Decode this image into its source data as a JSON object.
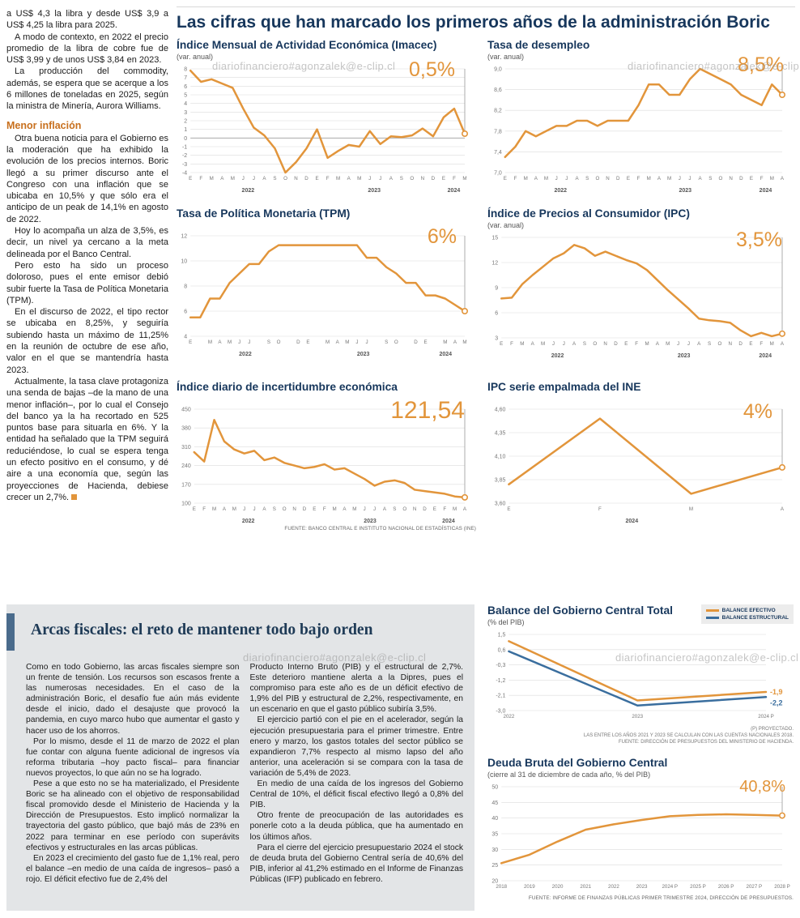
{
  "watermark": "diariofinanciero#agonzalek@e-clip.cl",
  "colors": {
    "accent_orange": "#E2953B",
    "accent_blue": "#3A6E9E",
    "navy": "#17375C",
    "panel_gray": "#E3E5E7",
    "accent_bar": "#4A6B8C",
    "subhead_orange": "#C8701E"
  },
  "headline": "Las cifras que han marcado los primeros años de la administración Boric",
  "left_article": {
    "paragraphs": [
      "a US$ 4,3 la libra y desde US$ 3,9 a US$ 4,25 la libra para 2025.",
      "A modo de contexto, en 2022 el precio promedio de la libra de cobre fue de US$ 3,99 y de unos US$ 3,84 en 2023.",
      "La producción del commodity, además, se espera que se acerque a los 6 millones de toneladas en 2025, según la ministra de Minería, Aurora Williams."
    ],
    "subhead": "Menor inflación",
    "paragraphs2": [
      "Otra buena noticia para el Gobierno es la moderación que ha exhibido la evolución de los precios internos. Boric llegó a su primer discurso ante el Congreso con una inflación que se ubicaba en 10,5% y que sólo era el anticipo de un peak de 14,1% en agosto de 2022.",
      "Hoy lo acompaña un alza de 3,5%, es decir, un nivel ya cercano a la meta delineada por el Banco Central.",
      "Pero esto ha sido un proceso doloroso, pues el ente emisor debió subir fuerte la Tasa de Política Monetaria (TPM).",
      "En el discurso de 2022, el tipo rector se ubicaba en 8,25%, y seguiría subiendo hasta un máximo de 11,25% en la reunión de octubre de ese año, valor en el que se mantendría hasta 2023.",
      "Actualmente, la tasa clave protagoniza una senda de bajas –de la mano de una menor inflación–, por lo cual el Consejo del banco ya la ha recortado en 525 puntos base para situarla en 6%. Y la entidad ha señalado que la TPM seguirá reduciéndose, lo cual se espera tenga un efecto positivo en el consumo, y dé aire a una economía que, según las proyecciones de Hacienda, debiese crecer un 2,7%."
    ]
  },
  "chart_data": [
    {
      "type": "line",
      "title": "Índice Mensual de Actividad Económica (Imacec)",
      "subtitle": "(var. anual)",
      "big_value": "0,5%",
      "ylim": [
        -4,
        8
      ],
      "yticks": [
        "8",
        "7",
        "6",
        "5",
        "4",
        "3",
        "2",
        "1",
        "0",
        "-1",
        "-2",
        "-3",
        "-4"
      ],
      "zeroline": true,
      "end_marker": true,
      "x": [
        "E",
        "F",
        "M",
        "A",
        "M",
        "J",
        "J",
        "A",
        "S",
        "O",
        "N",
        "D",
        "E",
        "F",
        "M",
        "A",
        "M",
        "J",
        "J",
        "A",
        "S",
        "O",
        "N",
        "D",
        "E",
        "F",
        "M"
      ],
      "years": [
        {
          "label": "2022",
          "pos": 0.21
        },
        {
          "label": "2023",
          "pos": 0.67
        },
        {
          "label": "2024",
          "pos": 0.96
        }
      ],
      "series": [
        {
          "name": "Imacec",
          "color": "#E2953B",
          "values": [
            7.8,
            6.5,
            6.8,
            6.3,
            5.8,
            3.4,
            1.2,
            0.3,
            -1.2,
            -4.0,
            -2.8,
            -1.2,
            1.0,
            -2.3,
            -1.5,
            -0.8,
            -1.0,
            0.8,
            -0.7,
            0.2,
            0.1,
            0.3,
            1.1,
            0.2,
            2.4,
            3.4,
            0.5
          ]
        }
      ]
    },
    {
      "type": "line",
      "title": "Tasa de desempleo",
      "subtitle": "(var. anual)",
      "big_value": "8,5%",
      "ylim": [
        7.0,
        9.0
      ],
      "yticks": [
        "9,0",
        "8,6",
        "8,2",
        "7,8",
        "7,4",
        "7,0"
      ],
      "end_marker": true,
      "x": [
        "E",
        "F",
        "M",
        "A",
        "M",
        "J",
        "J",
        "A",
        "S",
        "O",
        "N",
        "D",
        "E",
        "F",
        "M",
        "A",
        "M",
        "J",
        "J",
        "A",
        "S",
        "O",
        "N",
        "D",
        "E",
        "F",
        "M",
        "A"
      ],
      "years": [
        {
          "label": "2022",
          "pos": 0.2
        },
        {
          "label": "2023",
          "pos": 0.65
        },
        {
          "label": "2024",
          "pos": 0.94
        }
      ],
      "series": [
        {
          "name": "Tasa de desempleo",
          "color": "#E2953B",
          "values": [
            7.3,
            7.5,
            7.8,
            7.7,
            7.8,
            7.9,
            7.9,
            8.0,
            8.0,
            7.9,
            8.0,
            8.0,
            8.0,
            8.3,
            8.7,
            8.7,
            8.5,
            8.5,
            8.8,
            9.0,
            8.9,
            8.8,
            8.7,
            8.5,
            8.4,
            8.3,
            8.7,
            8.5
          ]
        }
      ]
    },
    {
      "type": "line",
      "title": "Tasa de Política Monetaria (TPM)",
      "big_value": "6%",
      "ylim": [
        4,
        12
      ],
      "yticks": [
        "12",
        "10",
        "8",
        "6",
        "4"
      ],
      "end_marker": true,
      "x": [
        "E",
        "",
        "M",
        "A",
        "M",
        "J",
        "J",
        "",
        "S",
        "O",
        "",
        "D",
        "E",
        "",
        "M",
        "A",
        "M",
        "J",
        "J",
        "",
        "S",
        "O",
        "",
        "D",
        "E",
        "",
        "M",
        "A",
        "M"
      ],
      "years": [
        {
          "label": "2022",
          "pos": 0.2
        },
        {
          "label": "2023",
          "pos": 0.63
        },
        {
          "label": "2024",
          "pos": 0.93
        }
      ],
      "series": [
        {
          "name": "TPM",
          "color": "#E2953B",
          "values": [
            5.5,
            5.5,
            7.0,
            7.0,
            8.25,
            9.0,
            9.75,
            9.75,
            10.75,
            11.25,
            11.25,
            11.25,
            11.25,
            11.25,
            11.25,
            11.25,
            11.25,
            11.25,
            10.25,
            10.25,
            9.5,
            9.0,
            8.25,
            8.25,
            7.25,
            7.25,
            7.0,
            6.5,
            6.0
          ]
        }
      ]
    },
    {
      "type": "line",
      "title": "Índice de Precios al Consumidor (IPC)",
      "subtitle": "(var. anual)",
      "big_value": "3,5%",
      "ylim": [
        3,
        15
      ],
      "yticks": [
        "15",
        "12",
        "9",
        "6",
        "3"
      ],
      "end_marker": true,
      "x": [
        "E",
        "F",
        "M",
        "A",
        "M",
        "J",
        "J",
        "A",
        "S",
        "O",
        "N",
        "D",
        "E",
        "F",
        "M",
        "A",
        "M",
        "J",
        "J",
        "A",
        "S",
        "O",
        "N",
        "D",
        "E",
        "F",
        "M",
        "A"
      ],
      "years": [
        {
          "label": "2022",
          "pos": 0.2
        },
        {
          "label": "2023",
          "pos": 0.65
        },
        {
          "label": "2024",
          "pos": 0.94
        }
      ],
      "series": [
        {
          "name": "IPC",
          "color": "#E2953B",
          "values": [
            7.7,
            7.8,
            9.4,
            10.5,
            11.5,
            12.5,
            13.1,
            14.1,
            13.7,
            12.8,
            13.3,
            12.8,
            12.3,
            11.9,
            11.1,
            9.9,
            8.7,
            7.6,
            6.5,
            5.3,
            5.1,
            5.0,
            4.8,
            3.9,
            3.2,
            3.6,
            3.2,
            3.5
          ]
        }
      ]
    },
    {
      "type": "line",
      "title": "Índice diario de incertidumbre económica",
      "big_value": "121,54",
      "ylim": [
        100,
        450
      ],
      "yticks": [
        "450",
        "380",
        "310",
        "240",
        "170",
        "100"
      ],
      "end_marker": true,
      "x": [
        "E",
        "F",
        "M",
        "A",
        "M",
        "J",
        "J",
        "A",
        "S",
        "O",
        "N",
        "D",
        "E",
        "F",
        "M",
        "A",
        "M",
        "J",
        "J",
        "A",
        "S",
        "O",
        "N",
        "D",
        "E",
        "F",
        "M",
        "A"
      ],
      "years": [
        {
          "label": "2022",
          "pos": 0.2
        },
        {
          "label": "2023",
          "pos": 0.65
        },
        {
          "label": "2024",
          "pos": 0.94
        }
      ],
      "series": [
        {
          "name": "Incertidumbre económica",
          "color": "#E2953B",
          "values": [
            290,
            255,
            410,
            330,
            300,
            285,
            295,
            260,
            270,
            250,
            240,
            230,
            235,
            245,
            225,
            230,
            210,
            190,
            165,
            180,
            185,
            175,
            150,
            145,
            140,
            135,
            125,
            121.54
          ]
        }
      ],
      "source": "FUENTE: BANCO CENTRAL E INSTITUTO NACIONAL DE ESTADÍSTICAS (INE)"
    },
    {
      "type": "line",
      "title": "IPC serie empalmada del INE",
      "big_value": "4%",
      "ylim": [
        3.6,
        4.6
      ],
      "yticks": [
        "4,60",
        "4,35",
        "4,10",
        "3,85",
        "3,60"
      ],
      "end_marker": true,
      "x": [
        "E",
        "F",
        "M",
        "A"
      ],
      "years": [
        {
          "label": "2024",
          "pos": 0.45
        }
      ],
      "series": [
        {
          "name": "IPC serie empalmada",
          "color": "#E2953B",
          "values": [
            3.8,
            4.5,
            3.7,
            3.98
          ]
        }
      ]
    },
    {
      "type": "line",
      "title": "Balance del Gobierno Central Total",
      "subtitle": "(% del PIB)",
      "ylim": [
        -3.0,
        1.5
      ],
      "yticks": [
        "1,5",
        "0,6",
        "-0,3",
        "-1,2",
        "-2,1",
        "-3,0"
      ],
      "x": [
        "2022",
        "2023",
        "2024 P"
      ],
      "series": [
        {
          "name": "BALANCE EFECTIVO",
          "color": "#E2953B",
          "values": [
            1.1,
            -2.4,
            -1.9
          ],
          "end_label": "-1,9",
          "label_dy": 0
        },
        {
          "name": "BALANCE ESTRUCTURAL",
          "color": "#3A6E9E",
          "values": [
            0.5,
            -2.7,
            -2.2
          ],
          "end_label": "-2,2",
          "label_dy": 7
        }
      ],
      "footnotes": [
        "(P) PROYECTADO.",
        "LAS ENTRE LOS AÑOS 2021 Y 2023 SE CALCULAN  CON LAS CUENTAS NACIONALES 2018.",
        "FUENTE: DIRECCIÓN DE PRESUPUESTOS DEL MINISTERIO DE HACIENDA."
      ]
    },
    {
      "type": "line",
      "title": "Deuda Bruta del Gobierno Central",
      "subtitle": "(cierre al 31 de diciembre de cada año, % del PIB)",
      "big_value": "40,8%",
      "ylim": [
        20,
        50
      ],
      "yticks": [
        "50",
        "45",
        "40",
        "35",
        "30",
        "25",
        "20"
      ],
      "end_marker": true,
      "x": [
        "2018",
        "2019",
        "2020",
        "2021",
        "2022",
        "2023",
        "2024 P",
        "2025 P",
        "2026 P",
        "2027 P",
        "2028 P"
      ],
      "series": [
        {
          "name": "Deuda bruta",
          "color": "#E2953B",
          "values": [
            25.6,
            28.3,
            32.5,
            36.3,
            38.0,
            39.4,
            40.6,
            41.0,
            41.2,
            41.0,
            40.8
          ]
        }
      ],
      "source": "FUENTE: INFORME DE FINANZAS PÚBLICAS PRIMER TRIMESTRE 2024, DIRECCIÓN DE PRESUPUESTOS."
    }
  ],
  "fiscal": {
    "title": "Arcas fiscales: el reto de mantener todo bajo orden",
    "col1": [
      "Como en todo Gobierno, las arcas fiscales siempre son un frente de tensión. Los recursos son escasos frente a las numerosas necesidades. En el caso de la administración Boric, el desafío fue aún más evidente desde el inicio, dado el desajuste que provocó la pandemia, en cuyo marco hubo que aumentar el gasto y hacer uso de los ahorros.",
      "Por lo mismo, desde el 11 de marzo de 2022 el plan fue contar con alguna fuente adicional de ingresos vía reforma tributaria –hoy pacto fiscal– para financiar nuevos proyectos, lo que aún no se ha logrado.",
      "Pese a que esto no se ha materializado, el Presidente Boric se ha alineado con el objetivo de responsabilidad fiscal promovido desde el Ministerio de Hacienda y la Dirección de Presupuestos. Esto implicó normalizar la trayectoria del gasto público, que bajó más de 23% en 2022 para terminar en ese período con superávits efectivos y estructurales en las arcas públicas.",
      "En 2023 el crecimiento del gasto fue de 1,1% real, pero el balance –en medio de una caída de ingresos– pasó a rojo. El déficit efectivo fue de 2,4% del"
    ],
    "col2": [
      "Producto Interno Bruto (PIB) y el estructural de 2,7%. Este deterioro mantiene alerta a la Dipres, pues el compromiso para este año es de un déficit efectivo de 1,9% del PIB y estructural de 2,2%, respectivamente, en un escenario en que el gasto público subiría 3,5%.",
      "El ejercicio partió con el pie en el acelerador, según la ejecución presupuestaria para el primer trimestre. Entre enero y marzo, los gastos totales del sector público se expandieron 7,7% respecto al mismo lapso del año anterior, una aceleración si se compara con la tasa de variación de 5,4% de 2023.",
      "En medio de una caída de los ingresos del Gobierno Central de 10%, el déficit fiscal efectivo llegó a 0,8% del PIB.",
      "Otro frente de preocupación de las autoridades es ponerle coto a la deuda pública, que ha aumentado en los últimos años.",
      "Para el cierre del ejercicio presupuestario 2024 el stock de deuda bruta del Gobierno Central sería de 40,6% del PIB, inferior al 41,2% estimado en el Informe de Finanzas Públicas (IFP) publicado en febrero."
    ]
  }
}
